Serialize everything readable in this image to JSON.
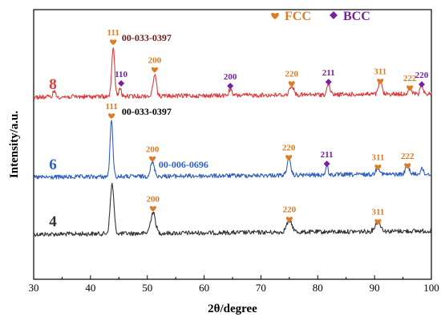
{
  "chart_data": {
    "type": "line",
    "xlabel": "2θ/degree",
    "ylabel": "Intensity/a.u.",
    "xlim": [
      30,
      100
    ],
    "x_ticks": [
      "30",
      "40",
      "50",
      "60",
      "70",
      "80",
      "90",
      "100"
    ],
    "grid": false,
    "legend": {
      "placement": "top-right",
      "entries": [
        {
          "symbol": "heart",
          "label": "FCC",
          "color": "#E07B24"
        },
        {
          "symbol": "diamond",
          "label": "BCC",
          "color": "#7A1FA2"
        }
      ]
    },
    "series": [
      {
        "name": "4",
        "color": "#333333",
        "baseline": 292,
        "peaks": [
          {
            "x": 43.8,
            "height": 62,
            "width": 0.45
          },
          {
            "x": 51.0,
            "height": 26,
            "width": 0.6
          },
          {
            "x": 75.0,
            "height": 14,
            "width": 0.7
          },
          {
            "x": 90.6,
            "height": 12,
            "width": 0.7
          }
        ],
        "annotations": [
          {
            "x": 51.0,
            "phase": "FCC",
            "hkl": "200"
          },
          {
            "x": 75.0,
            "phase": "FCC",
            "hkl": "220"
          },
          {
            "x": 90.6,
            "phase": "FCC",
            "hkl": "311"
          }
        ],
        "pdf_labels": []
      },
      {
        "name": "6",
        "color": "#2E5FBF",
        "baseline": 221,
        "peaks": [
          {
            "x": 43.7,
            "height": 70,
            "width": 0.35
          },
          {
            "x": 50.9,
            "height": 17,
            "width": 0.5
          },
          {
            "x": 74.9,
            "height": 20,
            "width": 0.45
          },
          {
            "x": 81.6,
            "height": 12,
            "width": 0.3
          },
          {
            "x": 90.6,
            "height": 9,
            "width": 0.5
          },
          {
            "x": 95.8,
            "height": 11,
            "width": 0.45
          },
          {
            "x": 98.3,
            "height": 8,
            "width": 0.3
          }
        ],
        "annotations": [
          {
            "x": 43.7,
            "phase": "FCC",
            "hkl": "111"
          },
          {
            "x": 50.9,
            "phase": "FCC",
            "hkl": "200"
          },
          {
            "x": 74.9,
            "phase": "FCC",
            "hkl": "220"
          },
          {
            "x": 81.6,
            "phase": "BCC",
            "hkl": "211"
          },
          {
            "x": 90.6,
            "phase": "FCC",
            "hkl": "311"
          },
          {
            "x": 95.8,
            "phase": "FCC",
            "hkl": "222"
          }
        ],
        "pdf_labels": [
          {
            "text": "00-033-0397",
            "color": "#000000",
            "x": 45.5,
            "level": "top"
          },
          {
            "text": "00-006-0696",
            "color": "#2E5FBF",
            "x": 52.0,
            "level": "mid"
          }
        ]
      },
      {
        "name": "8",
        "color": "#E03A3A",
        "baseline": 121,
        "peaks": [
          {
            "x": 33.6,
            "height": 8,
            "width": 0.3
          },
          {
            "x": 44.0,
            "height": 62,
            "width": 0.35
          },
          {
            "x": 45.2,
            "height": 10,
            "width": 0.3
          },
          {
            "x": 51.3,
            "height": 28,
            "width": 0.4
          },
          {
            "x": 64.6,
            "height": 8,
            "width": 0.35
          },
          {
            "x": 75.4,
            "height": 12,
            "width": 0.5
          },
          {
            "x": 81.9,
            "height": 14,
            "width": 0.35
          },
          {
            "x": 91.0,
            "height": 16,
            "width": 0.4
          },
          {
            "x": 96.2,
            "height": 8,
            "width": 0.4
          },
          {
            "x": 98.3,
            "height": 12,
            "width": 0.3
          }
        ],
        "annotations": [
          {
            "x": 44.0,
            "phase": "FCC",
            "hkl": "111"
          },
          {
            "x": 45.4,
            "phase": "BCC",
            "hkl": "110"
          },
          {
            "x": 51.3,
            "phase": "FCC",
            "hkl": "200"
          },
          {
            "x": 64.6,
            "phase": "BCC",
            "hkl": "200"
          },
          {
            "x": 75.4,
            "phase": "FCC",
            "hkl": "220"
          },
          {
            "x": 81.9,
            "phase": "BCC",
            "hkl": "211"
          },
          {
            "x": 91.0,
            "phase": "FCC",
            "hkl": "311"
          },
          {
            "x": 96.2,
            "phase": "FCC",
            "hkl": "222"
          },
          {
            "x": 98.3,
            "phase": "BCC",
            "hkl": "220"
          }
        ],
        "pdf_labels": [
          {
            "text": "00-033-0397",
            "color": "#6B1A1A",
            "x": 45.5,
            "level": "top"
          }
        ]
      }
    ]
  }
}
